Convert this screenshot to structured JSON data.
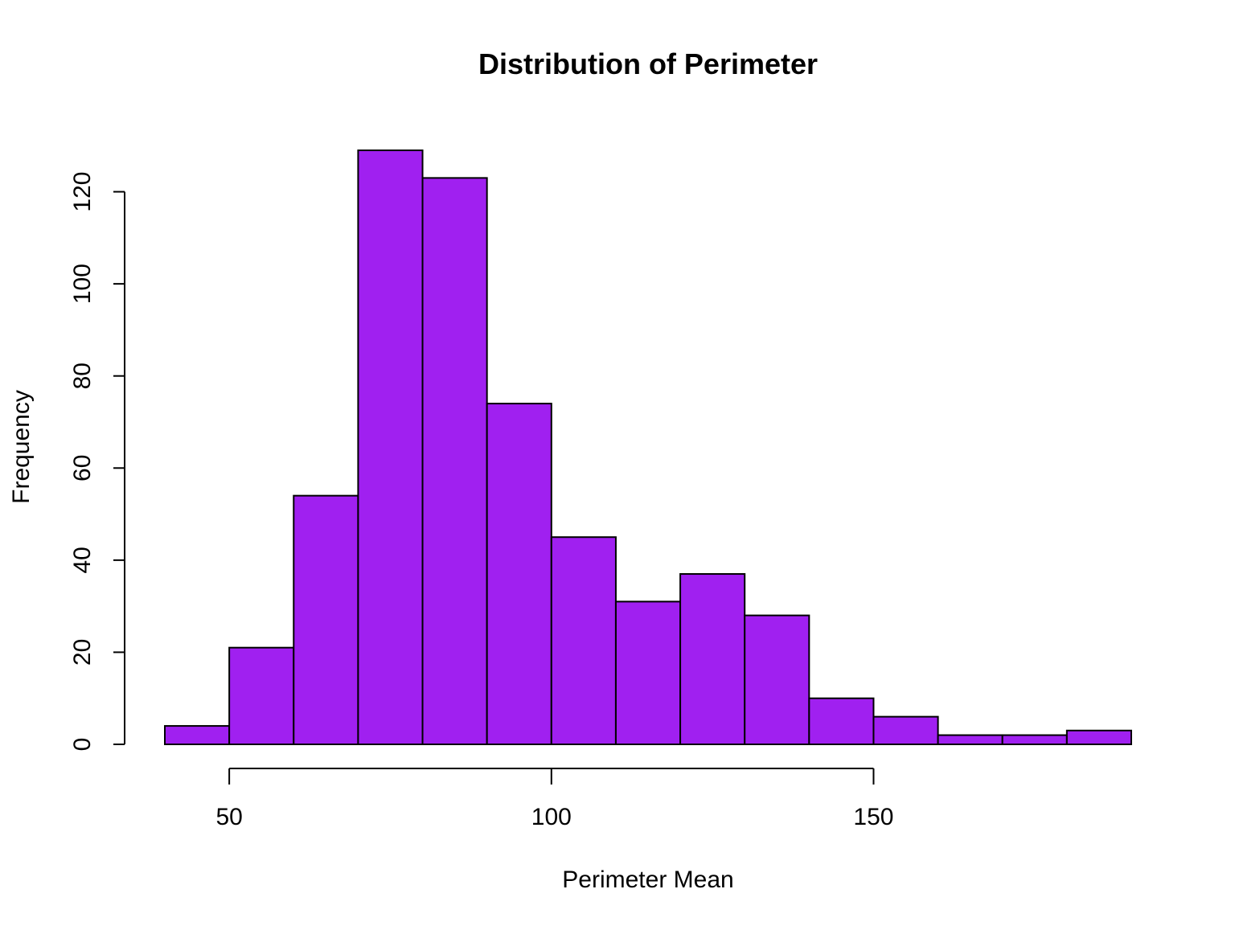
{
  "chart_data": {
    "type": "bar",
    "title": "Distribution of Perimeter",
    "xlabel": "Perimeter Mean",
    "ylabel": "Frequency",
    "bin_edges": [
      40,
      50,
      60,
      70,
      80,
      90,
      100,
      110,
      120,
      130,
      140,
      150,
      160,
      170,
      180,
      190
    ],
    "values": [
      4,
      21,
      54,
      129,
      123,
      74,
      45,
      31,
      37,
      28,
      10,
      6,
      2,
      2,
      3
    ],
    "xlim": [
      40,
      190
    ],
    "ylim": [
      0,
      129
    ],
    "x_ticks": [
      50,
      100,
      150
    ],
    "y_ticks": [
      0,
      20,
      40,
      60,
      80,
      100,
      120
    ],
    "bar_color": "#A020F0",
    "border_color": "#000000",
    "grid": false,
    "legend": "none"
  }
}
